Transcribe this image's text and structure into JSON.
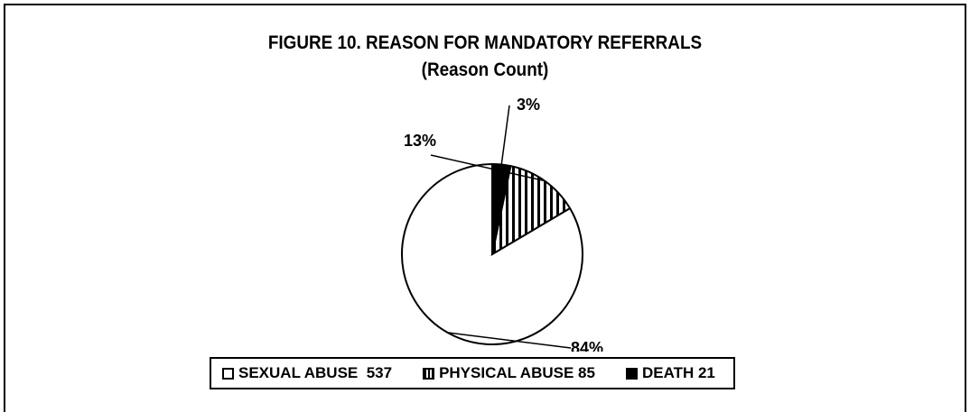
{
  "chart_data": {
    "type": "pie",
    "title": "FIGURE 10. REASON FOR MANDATORY REFERRALS",
    "subtitle": "(Reason Count)",
    "slices": [
      {
        "name": "SEXUAL ABUSE",
        "value": 537,
        "percent_label": "84%",
        "fill": "#ffffff",
        "pattern": "none",
        "legend_label": "SEXUAL ABUSE  537"
      },
      {
        "name": "PHYSICAL ABUSE",
        "value": 85,
        "percent_label": "13%",
        "fill": "#ffffff",
        "pattern": "vertical-stripes",
        "legend_label": "PHYSICAL ABUSE 85"
      },
      {
        "name": "DEATH",
        "value": 21,
        "percent_label": "3%",
        "fill": "#000000",
        "pattern": "solid",
        "legend_label": "DEATH 21"
      }
    ],
    "legend_position": "bottom",
    "start_angle": "12 o'clock",
    "direction": "counterclockwise"
  }
}
